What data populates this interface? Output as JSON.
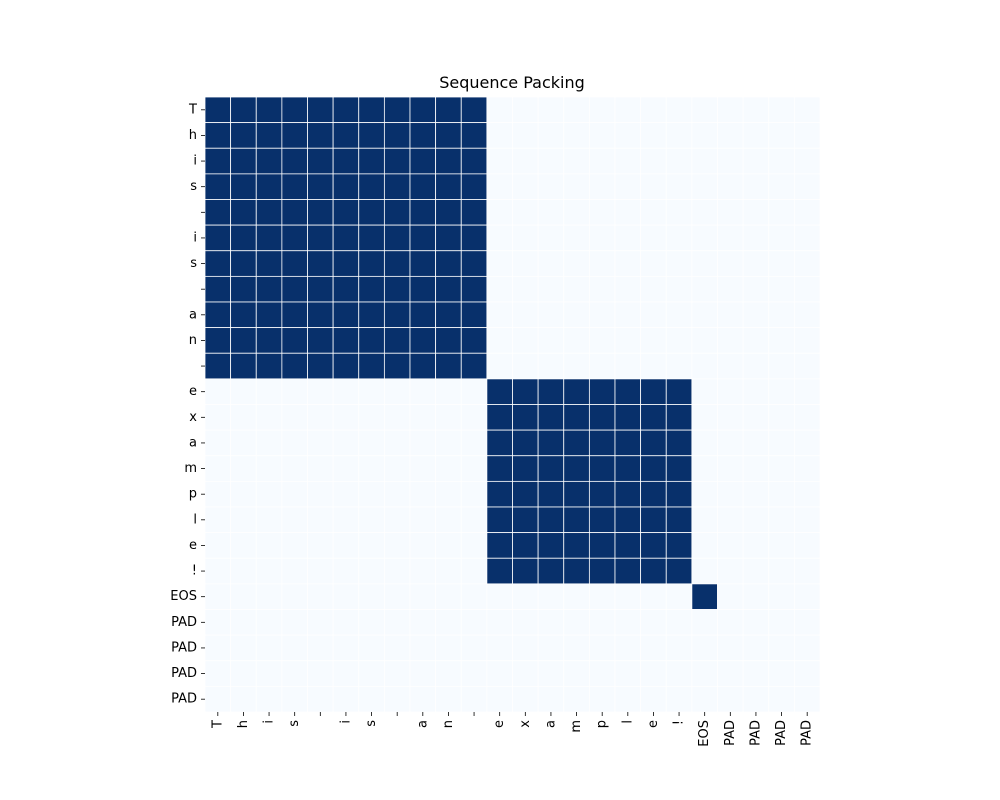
{
  "chart_data": {
    "type": "heatmap",
    "title": "Sequence Packing",
    "xlabel": "",
    "ylabel": "",
    "x_tick_labels": [
      "T",
      "h",
      "i",
      "s",
      " ",
      "i",
      "s",
      " ",
      "a",
      "n",
      " ",
      "e",
      "x",
      "a",
      "m",
      "p",
      "l",
      "e",
      "!",
      "EOS",
      "PAD",
      "PAD",
      "PAD",
      "PAD"
    ],
    "y_tick_labels": [
      "T",
      "h",
      "i",
      "s",
      " ",
      "i",
      "s",
      " ",
      "a",
      "n",
      " ",
      "e",
      "x",
      "a",
      "m",
      "p",
      "l",
      "e",
      "!",
      "EOS",
      "PAD",
      "PAD",
      "PAD",
      "PAD"
    ],
    "blocks": [
      {
        "start": 0,
        "end": 10
      },
      {
        "start": 11,
        "end": 18
      },
      {
        "start": 19,
        "end": 19
      }
    ],
    "value_range": [
      0,
      1
    ],
    "colormap": "Blues",
    "colors": {
      "high": "#08306b",
      "low": "#f7fbff",
      "grid_line": "#ffffff"
    },
    "colorbar": false
  }
}
